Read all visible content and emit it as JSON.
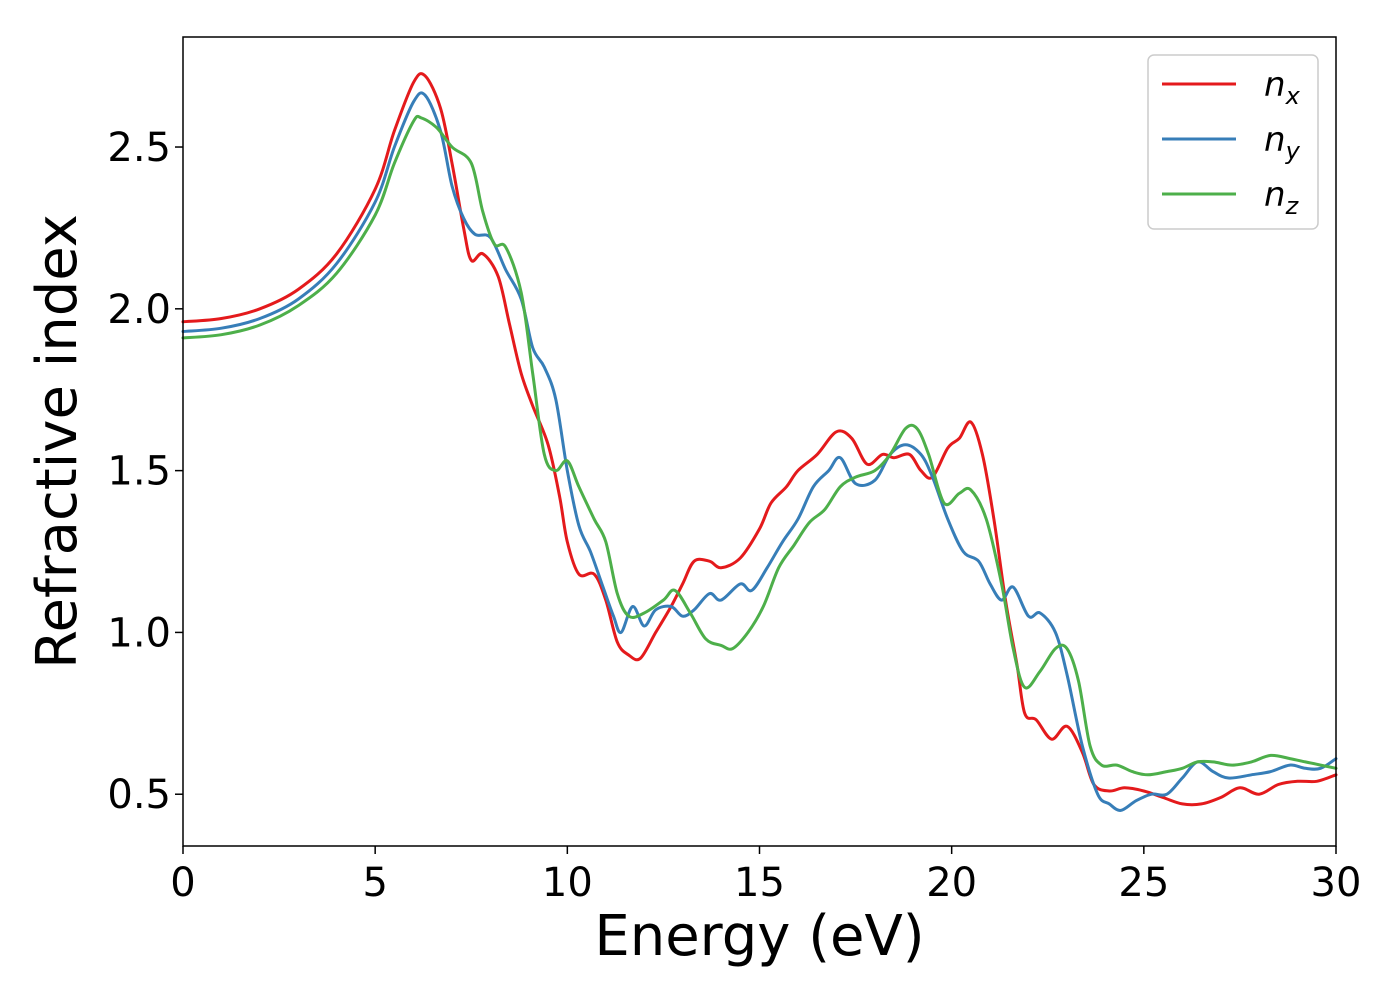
{
  "chart_data": {
    "type": "line",
    "title": "",
    "xlabel": "Energy (eV)",
    "ylabel": "Refractive index",
    "xlim": [
      0,
      30
    ],
    "ylim": [
      0.34,
      2.84
    ],
    "xticks": [
      0,
      5,
      10,
      15,
      20,
      25,
      30
    ],
    "xtick_labels": [
      "0",
      "5",
      "10",
      "15",
      "20",
      "25",
      "30"
    ],
    "yticks": [
      0.5,
      1.0,
      1.5,
      2.0,
      2.5
    ],
    "ytick_labels": [
      "0.5",
      "1.0",
      "1.5",
      "2.0",
      "2.5"
    ],
    "grid": false,
    "legend_position": "top-right",
    "series": [
      {
        "name": "n",
        "subscript": "x",
        "color": "#e41a1c",
        "points": [
          [
            0,
            1.96
          ],
          [
            1,
            1.97
          ],
          [
            2,
            2.0
          ],
          [
            3,
            2.06
          ],
          [
            4,
            2.17
          ],
          [
            5,
            2.37
          ],
          [
            5.5,
            2.55
          ],
          [
            6.0,
            2.7
          ],
          [
            6.3,
            2.72
          ],
          [
            6.7,
            2.62
          ],
          [
            7.0,
            2.45
          ],
          [
            7.3,
            2.25
          ],
          [
            7.5,
            2.15
          ],
          [
            7.8,
            2.17
          ],
          [
            8.2,
            2.1
          ],
          [
            8.5,
            1.95
          ],
          [
            8.8,
            1.8
          ],
          [
            9.1,
            1.7
          ],
          [
            9.5,
            1.58
          ],
          [
            9.8,
            1.42
          ],
          [
            10.0,
            1.28
          ],
          [
            10.3,
            1.18
          ],
          [
            10.7,
            1.18
          ],
          [
            11.0,
            1.1
          ],
          [
            11.3,
            0.97
          ],
          [
            11.6,
            0.93
          ],
          [
            11.9,
            0.92
          ],
          [
            12.3,
            1.0
          ],
          [
            12.7,
            1.08
          ],
          [
            13.0,
            1.15
          ],
          [
            13.3,
            1.22
          ],
          [
            13.7,
            1.22
          ],
          [
            14.0,
            1.2
          ],
          [
            14.5,
            1.23
          ],
          [
            15.0,
            1.32
          ],
          [
            15.3,
            1.4
          ],
          [
            15.7,
            1.45
          ],
          [
            16.0,
            1.5
          ],
          [
            16.5,
            1.55
          ],
          [
            17.0,
            1.62
          ],
          [
            17.4,
            1.6
          ],
          [
            17.8,
            1.52
          ],
          [
            18.2,
            1.55
          ],
          [
            18.5,
            1.54
          ],
          [
            18.9,
            1.55
          ],
          [
            19.2,
            1.5
          ],
          [
            19.5,
            1.48
          ],
          [
            19.9,
            1.57
          ],
          [
            20.2,
            1.6
          ],
          [
            20.5,
            1.65
          ],
          [
            20.8,
            1.55
          ],
          [
            21.1,
            1.35
          ],
          [
            21.4,
            1.1
          ],
          [
            21.7,
            0.9
          ],
          [
            21.9,
            0.75
          ],
          [
            22.2,
            0.73
          ],
          [
            22.6,
            0.67
          ],
          [
            23.0,
            0.71
          ],
          [
            23.4,
            0.63
          ],
          [
            23.7,
            0.53
          ],
          [
            24.1,
            0.51
          ],
          [
            24.5,
            0.52
          ],
          [
            25.0,
            0.51
          ],
          [
            25.5,
            0.49
          ],
          [
            26.0,
            0.47
          ],
          [
            26.5,
            0.47
          ],
          [
            27.0,
            0.49
          ],
          [
            27.5,
            0.52
          ],
          [
            28.0,
            0.5
          ],
          [
            28.5,
            0.53
          ],
          [
            29.0,
            0.54
          ],
          [
            29.5,
            0.54
          ],
          [
            30.0,
            0.56
          ]
        ]
      },
      {
        "name": "n",
        "subscript": "y",
        "color": "#377eb8",
        "points": [
          [
            0,
            1.93
          ],
          [
            1,
            1.94
          ],
          [
            2,
            1.97
          ],
          [
            3,
            2.03
          ],
          [
            4,
            2.14
          ],
          [
            5,
            2.33
          ],
          [
            5.5,
            2.5
          ],
          [
            6.0,
            2.64
          ],
          [
            6.3,
            2.66
          ],
          [
            6.7,
            2.55
          ],
          [
            7.0,
            2.38
          ],
          [
            7.3,
            2.28
          ],
          [
            7.6,
            2.23
          ],
          [
            8.0,
            2.22
          ],
          [
            8.4,
            2.12
          ],
          [
            8.8,
            2.03
          ],
          [
            9.1,
            1.88
          ],
          [
            9.4,
            1.82
          ],
          [
            9.7,
            1.72
          ],
          [
            10.0,
            1.5
          ],
          [
            10.3,
            1.33
          ],
          [
            10.6,
            1.25
          ],
          [
            10.9,
            1.15
          ],
          [
            11.2,
            1.05
          ],
          [
            11.4,
            1.0
          ],
          [
            11.7,
            1.08
          ],
          [
            12.0,
            1.02
          ],
          [
            12.3,
            1.07
          ],
          [
            12.7,
            1.08
          ],
          [
            13.0,
            1.05
          ],
          [
            13.3,
            1.07
          ],
          [
            13.7,
            1.12
          ],
          [
            14.0,
            1.1
          ],
          [
            14.5,
            1.15
          ],
          [
            14.8,
            1.13
          ],
          [
            15.2,
            1.2
          ],
          [
            15.6,
            1.28
          ],
          [
            16.0,
            1.35
          ],
          [
            16.4,
            1.45
          ],
          [
            16.8,
            1.5
          ],
          [
            17.1,
            1.54
          ],
          [
            17.5,
            1.46
          ],
          [
            18.0,
            1.47
          ],
          [
            18.4,
            1.55
          ],
          [
            18.8,
            1.58
          ],
          [
            19.2,
            1.55
          ],
          [
            19.5,
            1.48
          ],
          [
            19.9,
            1.35
          ],
          [
            20.3,
            1.25
          ],
          [
            20.7,
            1.22
          ],
          [
            21.0,
            1.15
          ],
          [
            21.3,
            1.1
          ],
          [
            21.6,
            1.14
          ],
          [
            22.0,
            1.05
          ],
          [
            22.3,
            1.06
          ],
          [
            22.7,
            1.0
          ],
          [
            23.0,
            0.87
          ],
          [
            23.4,
            0.65
          ],
          [
            23.8,
            0.5
          ],
          [
            24.1,
            0.47
          ],
          [
            24.4,
            0.45
          ],
          [
            24.8,
            0.48
          ],
          [
            25.2,
            0.5
          ],
          [
            25.6,
            0.5
          ],
          [
            26.0,
            0.55
          ],
          [
            26.4,
            0.6
          ],
          [
            26.8,
            0.57
          ],
          [
            27.2,
            0.55
          ],
          [
            27.8,
            0.56
          ],
          [
            28.3,
            0.57
          ],
          [
            28.8,
            0.59
          ],
          [
            29.2,
            0.58
          ],
          [
            29.6,
            0.58
          ],
          [
            30.0,
            0.61
          ]
        ]
      },
      {
        "name": "n",
        "subscript": "z",
        "color": "#4daf4a",
        "points": [
          [
            0,
            1.91
          ],
          [
            1,
            1.92
          ],
          [
            2,
            1.95
          ],
          [
            3,
            2.01
          ],
          [
            4,
            2.11
          ],
          [
            5,
            2.29
          ],
          [
            5.5,
            2.45
          ],
          [
            6.0,
            2.58
          ],
          [
            6.2,
            2.59
          ],
          [
            6.6,
            2.56
          ],
          [
            7.0,
            2.5
          ],
          [
            7.5,
            2.45
          ],
          [
            7.8,
            2.3
          ],
          [
            8.1,
            2.2
          ],
          [
            8.4,
            2.19
          ],
          [
            8.8,
            2.05
          ],
          [
            9.1,
            1.8
          ],
          [
            9.4,
            1.55
          ],
          [
            9.7,
            1.5
          ],
          [
            10.0,
            1.53
          ],
          [
            10.3,
            1.45
          ],
          [
            10.7,
            1.35
          ],
          [
            11.0,
            1.28
          ],
          [
            11.3,
            1.12
          ],
          [
            11.6,
            1.05
          ],
          [
            12.0,
            1.06
          ],
          [
            12.5,
            1.1
          ],
          [
            12.8,
            1.13
          ],
          [
            13.2,
            1.06
          ],
          [
            13.6,
            0.98
          ],
          [
            14.0,
            0.96
          ],
          [
            14.3,
            0.95
          ],
          [
            14.7,
            1.0
          ],
          [
            15.1,
            1.08
          ],
          [
            15.5,
            1.2
          ],
          [
            15.9,
            1.27
          ],
          [
            16.3,
            1.34
          ],
          [
            16.7,
            1.38
          ],
          [
            17.1,
            1.45
          ],
          [
            17.5,
            1.48
          ],
          [
            18.0,
            1.5
          ],
          [
            18.4,
            1.55
          ],
          [
            18.8,
            1.63
          ],
          [
            19.1,
            1.63
          ],
          [
            19.4,
            1.55
          ],
          [
            19.8,
            1.4
          ],
          [
            20.2,
            1.43
          ],
          [
            20.5,
            1.44
          ],
          [
            20.9,
            1.35
          ],
          [
            21.3,
            1.15
          ],
          [
            21.6,
            0.95
          ],
          [
            21.9,
            0.83
          ],
          [
            22.3,
            0.88
          ],
          [
            22.7,
            0.95
          ],
          [
            23.0,
            0.95
          ],
          [
            23.3,
            0.85
          ],
          [
            23.6,
            0.65
          ],
          [
            23.9,
            0.59
          ],
          [
            24.3,
            0.59
          ],
          [
            24.7,
            0.57
          ],
          [
            25.1,
            0.56
          ],
          [
            25.6,
            0.57
          ],
          [
            26.0,
            0.58
          ],
          [
            26.4,
            0.6
          ],
          [
            26.8,
            0.6
          ],
          [
            27.3,
            0.59
          ],
          [
            27.8,
            0.6
          ],
          [
            28.3,
            0.62
          ],
          [
            28.8,
            0.61
          ],
          [
            29.2,
            0.6
          ],
          [
            29.6,
            0.59
          ],
          [
            30.0,
            0.58
          ]
        ]
      }
    ]
  }
}
